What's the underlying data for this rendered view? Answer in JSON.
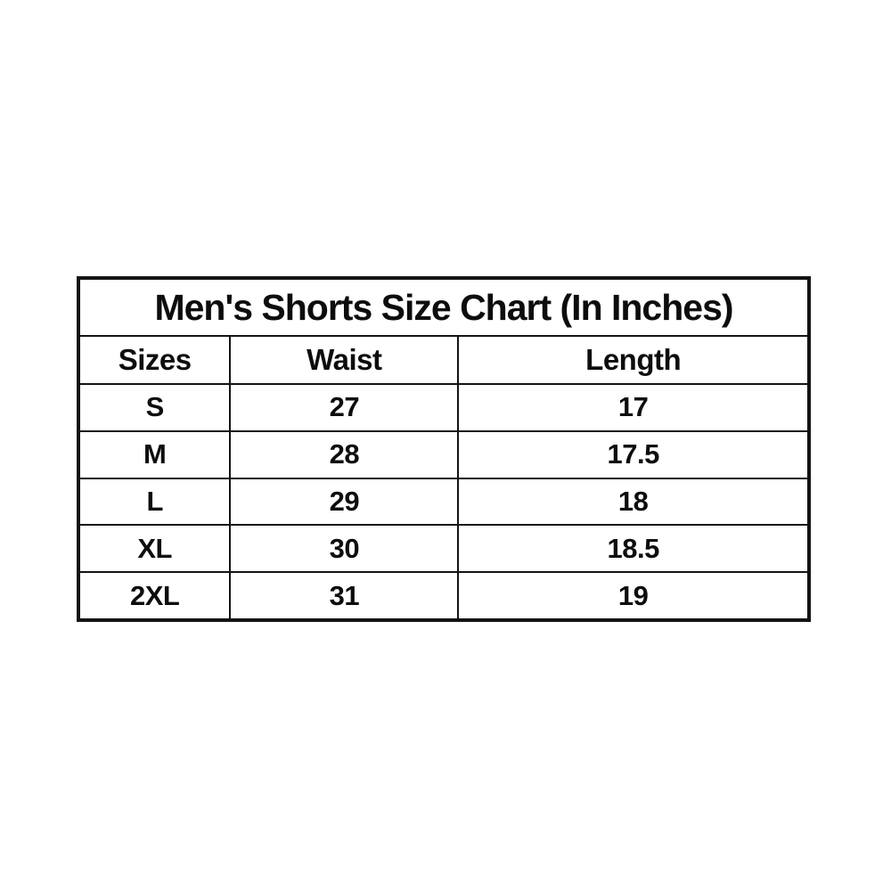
{
  "chart_data": {
    "type": "table",
    "title": "Men's Shorts Size Chart (In Inches)",
    "unit": "Inches",
    "columns": [
      "Sizes",
      "Waist",
      "Length"
    ],
    "rows": [
      [
        "S",
        "27",
        "17"
      ],
      [
        "M",
        "28",
        "17.5"
      ],
      [
        "L",
        "29",
        "18"
      ],
      [
        "XL",
        "30",
        "18.5"
      ],
      [
        "2XL",
        "31",
        "19"
      ]
    ]
  },
  "colors": {
    "background": "#ffffff",
    "border": "#141414",
    "text": "#0d0d0d"
  }
}
